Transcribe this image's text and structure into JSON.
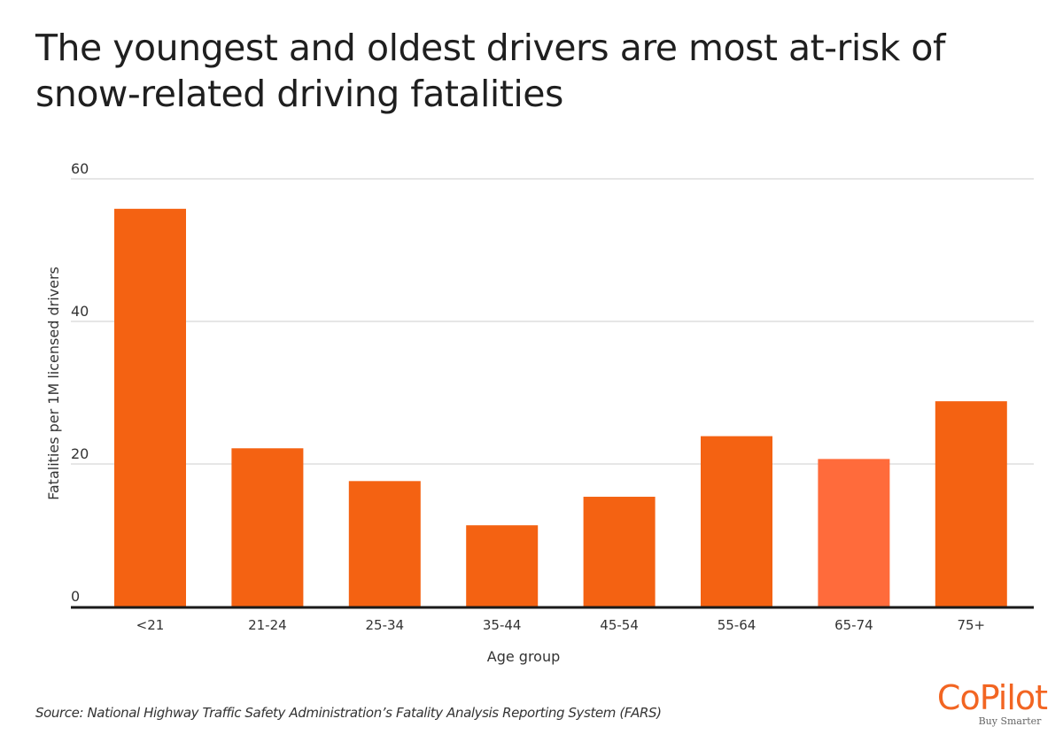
{
  "title": "The youngest and oldest drivers are most at-risk of snow-related driving fatalities",
  "source": "Source: National Highway Traffic Safety Administration’s Fatality Analysis Reporting System (FARS)",
  "logo": {
    "name": "CoPilot",
    "tagline": "Buy Smarter"
  },
  "colors": {
    "bar": "#f46212",
    "bar_highlight": "#ff6b3b",
    "grid": "#d8d8d8",
    "axis": "#1a1a1a"
  },
  "chart_data": {
    "type": "bar",
    "title": "The youngest and oldest drivers are most at-risk of snow-related driving fatalities",
    "xlabel": "Age group",
    "ylabel": "Fatalities per 1M licensed drivers",
    "categories": [
      "<21",
      "21-24",
      "25-34",
      "35-44",
      "45-54",
      "55-64",
      "65-74",
      "75+"
    ],
    "values": [
      55.8,
      22.2,
      17.6,
      11.4,
      15.4,
      23.9,
      20.7,
      28.8
    ],
    "highlight_index": 6,
    "ylim": [
      0,
      60
    ],
    "yticks": [
      0,
      20,
      40,
      60
    ],
    "grid": true,
    "legend": "none"
  }
}
